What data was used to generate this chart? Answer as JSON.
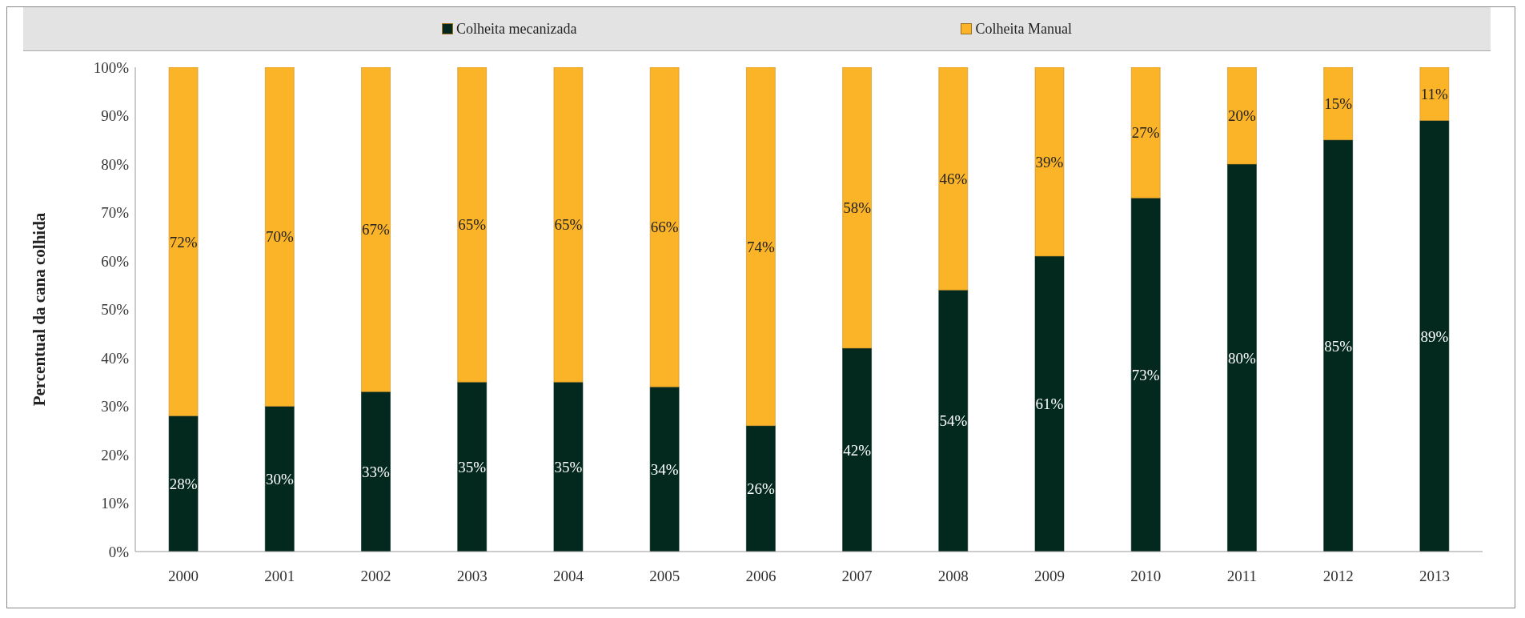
{
  "chart_data": {
    "type": "bar",
    "stacked": true,
    "ylabel": "Percentual da cana colhida",
    "legend": "top",
    "categories": [
      "2000",
      "2001",
      "2002",
      "2003",
      "2004",
      "2005",
      "2006",
      "2007",
      "2008",
      "2009",
      "2010",
      "2011",
      "2012",
      "2013"
    ],
    "series": [
      {
        "name": "Colheita mecanizada",
        "color": "#03291f",
        "values": [
          28,
          30,
          33,
          35,
          35,
          34,
          26,
          42,
          54,
          61,
          73,
          80,
          85,
          89
        ],
        "value_labels": [
          "28%",
          "30%",
          "33%",
          "35%",
          "35%",
          "34%",
          "26%",
          "42%",
          "54%",
          "61%",
          "73%",
          "80%",
          "85%",
          "89%"
        ]
      },
      {
        "name": "Colheita Manual",
        "color": "#fbb327",
        "values": [
          72,
          70,
          67,
          65,
          65,
          66,
          74,
          58,
          46,
          39,
          27,
          20,
          15,
          11
        ],
        "value_labels": [
          "72%",
          "70%",
          "67%",
          "65%",
          "65%",
          "66%",
          "74%",
          "58%",
          "46%",
          "39%",
          "27%",
          "20%",
          "15%",
          "11%"
        ]
      }
    ],
    "ylim": [
      0,
      100
    ],
    "yticks": [
      {
        "value": 0,
        "label": "0%"
      },
      {
        "value": 10,
        "label": "10%"
      },
      {
        "value": 20,
        "label": "20%"
      },
      {
        "value": 30,
        "label": "30%"
      },
      {
        "value": 40,
        "label": "40%"
      },
      {
        "value": 50,
        "label": "50%"
      },
      {
        "value": 60,
        "label": "60%"
      },
      {
        "value": 70,
        "label": "70%"
      },
      {
        "value": 80,
        "label": "80%"
      },
      {
        "value": 90,
        "label": "90%"
      },
      {
        "value": 100,
        "label": "100%"
      }
    ],
    "grid": false
  }
}
